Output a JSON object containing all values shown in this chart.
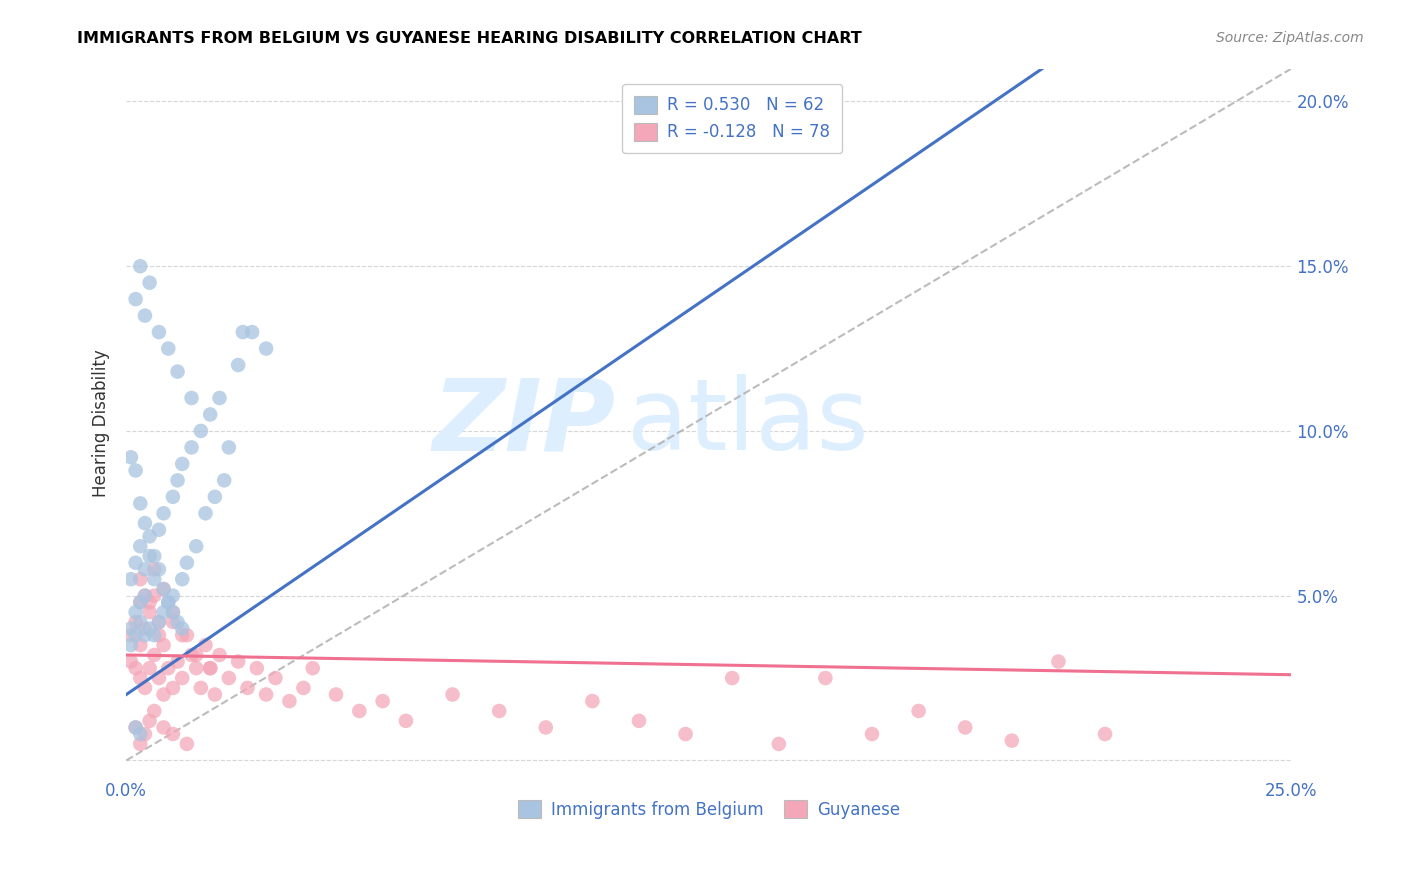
{
  "title": "IMMIGRANTS FROM BELGIUM VS GUYANESE HEARING DISABILITY CORRELATION CHART",
  "source": "Source: ZipAtlas.com",
  "ylabel": "Hearing Disability",
  "xlim": [
    0.0,
    0.25
  ],
  "ylim": [
    -0.005,
    0.21
  ],
  "belgium_R": 0.53,
  "belgium_N": 62,
  "guyanese_R": -0.128,
  "guyanese_N": 78,
  "belgium_color": "#a8c4e0",
  "guyanese_color": "#f4a7b9",
  "belgium_line_color": "#4472c4",
  "guyanese_line_color": "#f07090",
  "diagonal_color": "#b0b0b0",
  "watermark_zip": "ZIP",
  "watermark_atlas": "atlas",
  "watermark_color": "#ddeeff",
  "belgium_scatter_x": [
    0.001,
    0.001,
    0.001,
    0.002,
    0.002,
    0.002,
    0.003,
    0.003,
    0.003,
    0.004,
    0.004,
    0.004,
    0.005,
    0.005,
    0.006,
    0.006,
    0.007,
    0.007,
    0.008,
    0.008,
    0.009,
    0.01,
    0.01,
    0.011,
    0.012,
    0.012,
    0.013,
    0.014,
    0.015,
    0.016,
    0.017,
    0.018,
    0.019,
    0.02,
    0.021,
    0.022,
    0.024,
    0.025,
    0.027,
    0.03,
    0.001,
    0.002,
    0.003,
    0.004,
    0.005,
    0.006,
    0.007,
    0.008,
    0.009,
    0.01,
    0.011,
    0.012,
    0.002,
    0.003,
    0.004,
    0.005,
    0.007,
    0.009,
    0.011,
    0.014,
    0.002,
    0.003
  ],
  "belgium_scatter_y": [
    0.035,
    0.04,
    0.055,
    0.038,
    0.045,
    0.06,
    0.042,
    0.048,
    0.065,
    0.038,
    0.05,
    0.058,
    0.04,
    0.062,
    0.038,
    0.055,
    0.042,
    0.07,
    0.045,
    0.075,
    0.048,
    0.05,
    0.08,
    0.085,
    0.055,
    0.09,
    0.06,
    0.095,
    0.065,
    0.1,
    0.075,
    0.105,
    0.08,
    0.11,
    0.085,
    0.095,
    0.12,
    0.13,
    0.13,
    0.125,
    0.092,
    0.088,
    0.078,
    0.072,
    0.068,
    0.062,
    0.058,
    0.052,
    0.048,
    0.045,
    0.042,
    0.04,
    0.14,
    0.15,
    0.135,
    0.145,
    0.13,
    0.125,
    0.118,
    0.11,
    0.01,
    0.008
  ],
  "guyanese_scatter_x": [
    0.001,
    0.001,
    0.002,
    0.002,
    0.003,
    0.003,
    0.003,
    0.004,
    0.004,
    0.005,
    0.005,
    0.006,
    0.006,
    0.007,
    0.007,
    0.008,
    0.008,
    0.009,
    0.01,
    0.01,
    0.011,
    0.012,
    0.013,
    0.014,
    0.015,
    0.016,
    0.017,
    0.018,
    0.019,
    0.02,
    0.022,
    0.024,
    0.026,
    0.028,
    0.03,
    0.032,
    0.035,
    0.038,
    0.04,
    0.045,
    0.05,
    0.055,
    0.06,
    0.07,
    0.08,
    0.09,
    0.1,
    0.11,
    0.12,
    0.13,
    0.14,
    0.15,
    0.16,
    0.17,
    0.18,
    0.19,
    0.2,
    0.21,
    0.003,
    0.004,
    0.005,
    0.006,
    0.007,
    0.008,
    0.01,
    0.012,
    0.015,
    0.018,
    0.002,
    0.003,
    0.004,
    0.005,
    0.006,
    0.008,
    0.01,
    0.013
  ],
  "guyanese_scatter_y": [
    0.03,
    0.038,
    0.028,
    0.042,
    0.025,
    0.035,
    0.048,
    0.022,
    0.04,
    0.028,
    0.045,
    0.032,
    0.05,
    0.025,
    0.038,
    0.02,
    0.035,
    0.028,
    0.022,
    0.042,
    0.03,
    0.025,
    0.038,
    0.032,
    0.028,
    0.022,
    0.035,
    0.028,
    0.02,
    0.032,
    0.025,
    0.03,
    0.022,
    0.028,
    0.02,
    0.025,
    0.018,
    0.022,
    0.028,
    0.02,
    0.015,
    0.018,
    0.012,
    0.02,
    0.015,
    0.01,
    0.018,
    0.012,
    0.008,
    0.025,
    0.005,
    0.025,
    0.008,
    0.015,
    0.01,
    0.006,
    0.03,
    0.008,
    0.055,
    0.05,
    0.048,
    0.058,
    0.042,
    0.052,
    0.045,
    0.038,
    0.032,
    0.028,
    0.01,
    0.005,
    0.008,
    0.012,
    0.015,
    0.01,
    0.008,
    0.005
  ]
}
